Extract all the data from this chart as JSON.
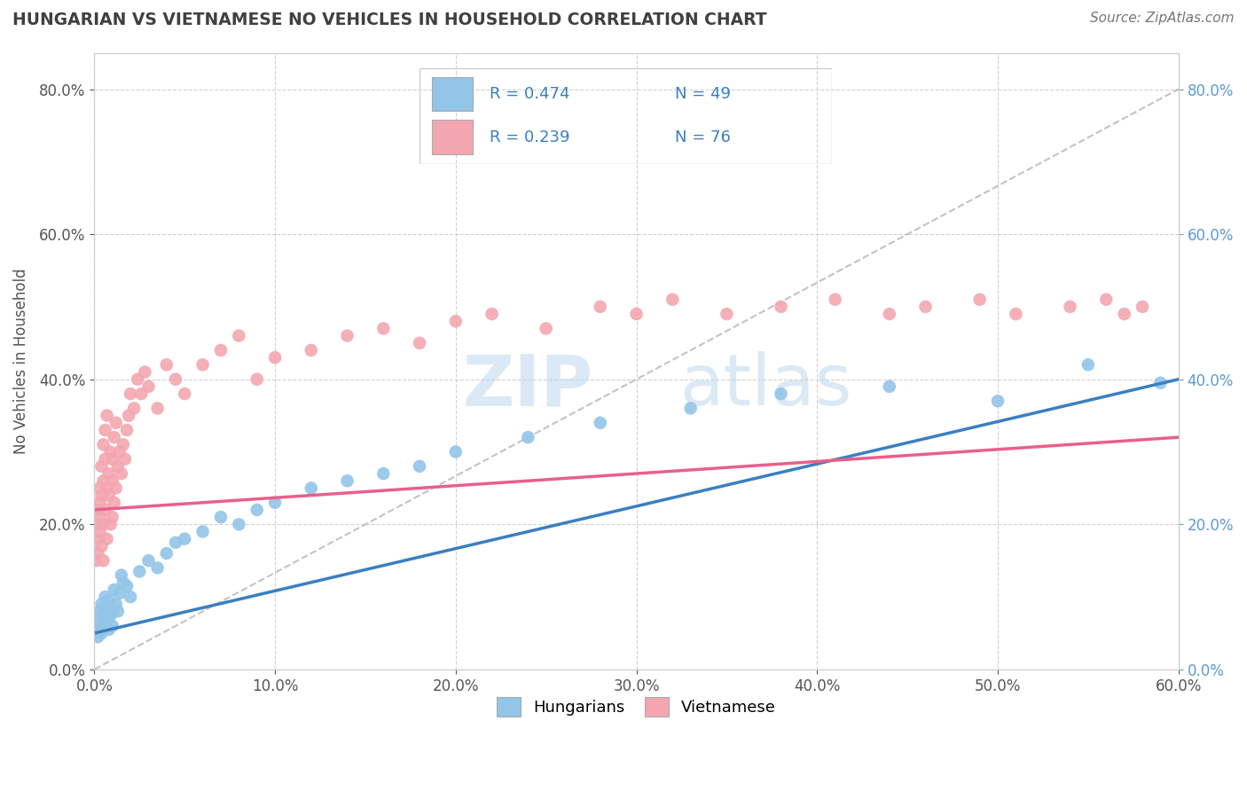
{
  "title": "HUNGARIAN VS VIETNAMESE NO VEHICLES IN HOUSEHOLD CORRELATION CHART",
  "source": "Source: ZipAtlas.com",
  "xlim": [
    0.0,
    0.6
  ],
  "ylim": [
    0.0,
    0.85
  ],
  "hungarian_color": "#92C5E8",
  "vietnamese_color": "#F4A6B0",
  "hungarian_line_color": "#3A7FC1",
  "vietnamese_line_color": "#E8608A",
  "background_color": "#ffffff",
  "grid_color": "#cccccc",
  "watermark_color": "#D6EAF8",
  "right_tick_color": "#5B9BD5",
  "title_color": "#404040",
  "legend_r_hu": "R = 0.474",
  "legend_n_hu": "N = 49",
  "legend_r_vi": "R = 0.239",
  "legend_n_vi": "N = 76",
  "hu_x": [
    0.001,
    0.002,
    0.002,
    0.003,
    0.003,
    0.004,
    0.004,
    0.005,
    0.005,
    0.006,
    0.006,
    0.007,
    0.008,
    0.008,
    0.009,
    0.01,
    0.01,
    0.011,
    0.012,
    0.013,
    0.014,
    0.015,
    0.016,
    0.018,
    0.02,
    0.025,
    0.03,
    0.035,
    0.04,
    0.045,
    0.05,
    0.06,
    0.07,
    0.08,
    0.09,
    0.1,
    0.12,
    0.14,
    0.16,
    0.18,
    0.2,
    0.24,
    0.28,
    0.33,
    0.38,
    0.44,
    0.5,
    0.55,
    0.59
  ],
  "hu_y": [
    0.055,
    0.07,
    0.045,
    0.08,
    0.06,
    0.09,
    0.05,
    0.075,
    0.065,
    0.085,
    0.1,
    0.07,
    0.055,
    0.095,
    0.075,
    0.08,
    0.06,
    0.11,
    0.09,
    0.08,
    0.105,
    0.13,
    0.12,
    0.115,
    0.1,
    0.135,
    0.15,
    0.14,
    0.16,
    0.175,
    0.18,
    0.19,
    0.21,
    0.2,
    0.22,
    0.23,
    0.25,
    0.26,
    0.27,
    0.28,
    0.3,
    0.32,
    0.34,
    0.36,
    0.38,
    0.39,
    0.37,
    0.42,
    0.395
  ],
  "vi_x": [
    0.001,
    0.001,
    0.002,
    0.002,
    0.002,
    0.003,
    0.003,
    0.003,
    0.003,
    0.004,
    0.004,
    0.004,
    0.005,
    0.005,
    0.005,
    0.005,
    0.006,
    0.006,
    0.006,
    0.007,
    0.007,
    0.007,
    0.008,
    0.008,
    0.009,
    0.009,
    0.01,
    0.01,
    0.01,
    0.011,
    0.011,
    0.012,
    0.012,
    0.013,
    0.014,
    0.015,
    0.016,
    0.017,
    0.018,
    0.019,
    0.02,
    0.022,
    0.024,
    0.026,
    0.028,
    0.03,
    0.035,
    0.04,
    0.045,
    0.05,
    0.06,
    0.07,
    0.08,
    0.09,
    0.1,
    0.12,
    0.14,
    0.16,
    0.18,
    0.2,
    0.22,
    0.25,
    0.28,
    0.3,
    0.32,
    0.35,
    0.38,
    0.41,
    0.44,
    0.46,
    0.49,
    0.51,
    0.54,
    0.56,
    0.57,
    0.58
  ],
  "vi_y": [
    0.15,
    0.2,
    0.18,
    0.22,
    0.16,
    0.19,
    0.23,
    0.25,
    0.21,
    0.17,
    0.24,
    0.28,
    0.2,
    0.26,
    0.31,
    0.15,
    0.22,
    0.29,
    0.33,
    0.25,
    0.18,
    0.35,
    0.24,
    0.27,
    0.2,
    0.3,
    0.21,
    0.26,
    0.29,
    0.23,
    0.32,
    0.25,
    0.34,
    0.28,
    0.3,
    0.27,
    0.31,
    0.29,
    0.33,
    0.35,
    0.38,
    0.36,
    0.4,
    0.38,
    0.41,
    0.39,
    0.36,
    0.42,
    0.4,
    0.38,
    0.42,
    0.44,
    0.46,
    0.4,
    0.43,
    0.44,
    0.46,
    0.47,
    0.45,
    0.48,
    0.49,
    0.47,
    0.5,
    0.49,
    0.51,
    0.49,
    0.5,
    0.51,
    0.49,
    0.5,
    0.51,
    0.49,
    0.5,
    0.51,
    0.49,
    0.5
  ]
}
